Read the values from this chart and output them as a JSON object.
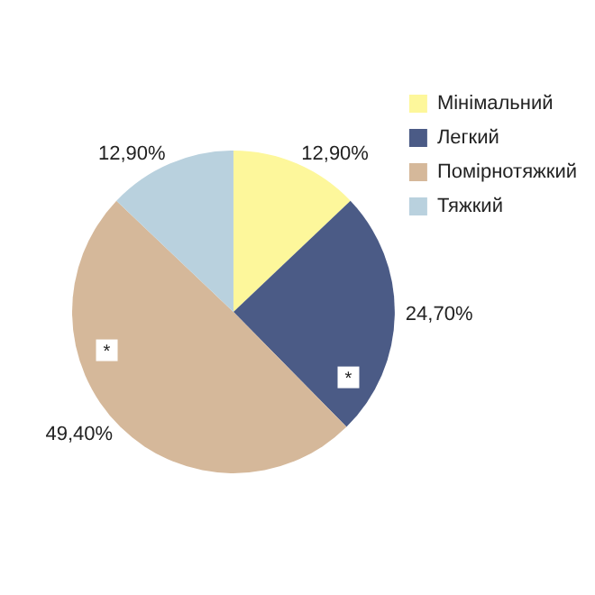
{
  "chart_data": {
    "type": "pie",
    "categories": [
      "Мінімальний",
      "Легкий",
      "Помірнотяжкий",
      "Тяжкий"
    ],
    "values": [
      12.9,
      24.7,
      49.4,
      12.9
    ],
    "colors": [
      "#fdf79b",
      "#4b5b86",
      "#d5b89a",
      "#b9d1de"
    ],
    "value_labels": [
      "12,90%",
      "24,70%",
      "49,40%",
      "12,90%"
    ],
    "annotations": [
      {
        "text": "*",
        "x": "Легкий"
      },
      {
        "text": "*",
        "x": "Помірнотяжкий"
      }
    ],
    "legend": "top right"
  }
}
